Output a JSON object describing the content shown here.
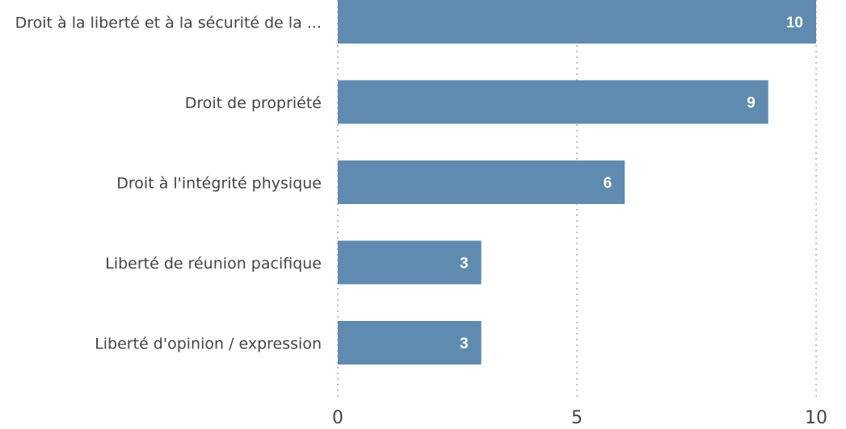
{
  "chart_data": {
    "type": "bar",
    "orientation": "horizontal",
    "categories": [
      "Droit à la liberté et à la sécurité de la ...",
      "Droit de propriété",
      "Droit à l'intégrité physique",
      "Liberté de réunion pacifique",
      "Liberté d'opinion / expression"
    ],
    "values": [
      10,
      9,
      6,
      3,
      3
    ],
    "color": "#5f8bb0",
    "xlim": [
      0,
      10
    ],
    "xticks": [
      0,
      5,
      10
    ],
    "grid": true
  }
}
